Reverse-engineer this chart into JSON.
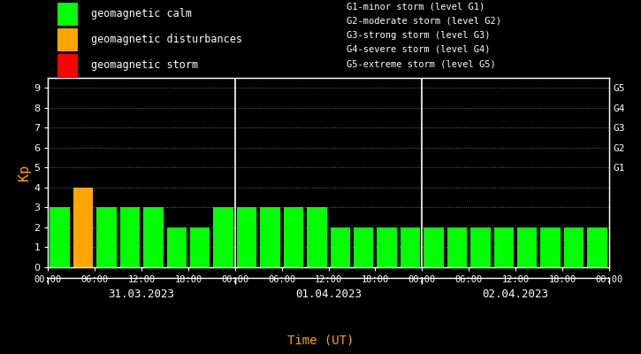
{
  "background_color": "#000000",
  "plot_bg_color": "#000000",
  "xlabel": "Time (UT)",
  "ylabel": "Kp",
  "ylabel_color": "#FFA500",
  "xlabel_color": "#FFA500",
  "ylim": [
    0,
    9.5
  ],
  "yticks": [
    0,
    1,
    2,
    3,
    4,
    5,
    6,
    7,
    8,
    9
  ],
  "right_labels": [
    "G5",
    "G4",
    "G3",
    "G2",
    "G1"
  ],
  "right_label_yvals": [
    9,
    8,
    7,
    6,
    5
  ],
  "legend_items": [
    {
      "label": "geomagnetic calm",
      "color": "#00FF00"
    },
    {
      "label": "geomagnetic disturbances",
      "color": "#FFA500"
    },
    {
      "label": "geomagnetic storm",
      "color": "#FF0000"
    }
  ],
  "legend_right_text": [
    "G1-minor storm (level G1)",
    "G2-moderate storm (level G2)",
    "G3-strong storm (level G3)",
    "G4-severe storm (level G4)",
    "G5-extreme storm (level G5)"
  ],
  "day_labels": [
    "31.03.2023",
    "01.04.2023",
    "02.04.2023"
  ],
  "kp_values": [
    3,
    4,
    3,
    3,
    3,
    2,
    2,
    3,
    3,
    3,
    3,
    3,
    2,
    2,
    2,
    2,
    2,
    2,
    2,
    2,
    2,
    2,
    2,
    2
  ],
  "bar_colors": [
    "#00FF00",
    "#FFA500",
    "#00FF00",
    "#00FF00",
    "#00FF00",
    "#00FF00",
    "#00FF00",
    "#00FF00",
    "#00FF00",
    "#00FF00",
    "#00FF00",
    "#00FF00",
    "#00FF00",
    "#00FF00",
    "#00FF00",
    "#00FF00",
    "#00FF00",
    "#00FF00",
    "#00FF00",
    "#00FF00",
    "#00FF00",
    "#00FF00",
    "#00FF00",
    "#00FF00"
  ],
  "tick_label_color": "#FFFFFF",
  "axis_color": "#FFFFFF",
  "text_color": "#FFFFFF",
  "monospace_font": "monospace",
  "bar_width": 0.85
}
